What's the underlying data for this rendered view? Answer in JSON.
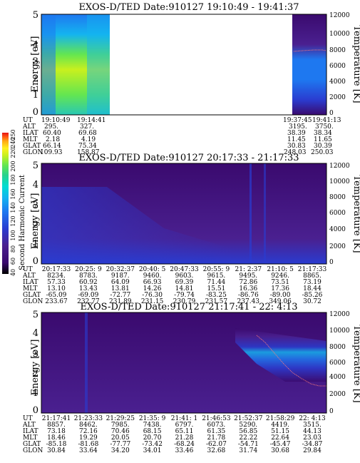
{
  "colors": {
    "background": "#ffffff",
    "ink": "#000000",
    "colormap": [
      "#000000",
      "#3a0a6e",
      "#4a2090",
      "#2a3cd0",
      "#1e78f0",
      "#14b4f0",
      "#00dcd2",
      "#28d28c",
      "#64e650",
      "#c8f01e",
      "#fff01e",
      "#ffaa14",
      "#ff5a14",
      "#e61414"
    ],
    "temperature_trace": "#ff7a7a"
  },
  "colorbar": {
    "label": "Second Harmonic Current",
    "ticks": [
      "40",
      "60",
      "80",
      "100",
      "120",
      "140",
      "160",
      "180",
      "200",
      "220",
      "240",
      "250"
    ],
    "range": [
      40,
      250
    ]
  },
  "panels": [
    {
      "title": "EXOS-D/TED   Date:910127   19:10:49 - 19:41:37",
      "row_headers": [
        "UT",
        "ALT",
        "ILAT",
        "MLT",
        "GLAT",
        "GLON"
      ],
      "columns": [
        {
          "values": [
            "19:10:49",
            "295.",
            "60.40",
            "2.18",
            "66.14",
            "109.93"
          ]
        },
        {
          "values": [
            "19:14:41",
            "327.",
            "69.68",
            "4.19",
            "75.34",
            "158.87"
          ]
        },
        {
          "values": [
            "19:37:45",
            "3195.",
            "38.39",
            "11.45",
            "30.83",
            "248.03"
          ]
        },
        {
          "values": [
            "19:41:13",
            "3750.",
            "38.34",
            "11.65",
            "30.39",
            "250.03"
          ]
        }
      ]
    },
    {
      "title": "EXOS-D/TED   Date:910127   20:17:33 - 21:17:33",
      "row_headers": [
        "UT",
        "ALT",
        "ILAT",
        "MLT",
        "GLAT",
        "GLON"
      ],
      "columns": [
        {
          "values": [
            "20:17:33",
            "8234.",
            "57.33",
            "13.10",
            "-65.09",
            "233.67"
          ]
        },
        {
          "values": [
            "20:25: 9",
            "8783.",
            "60.92",
            "13.43",
            "-69.09",
            "232.77"
          ]
        },
        {
          "values": [
            "20:32:37",
            "9187.",
            "64.09",
            "13.81",
            "-72.77",
            "231.89"
          ]
        },
        {
          "values": [
            "20:40: 5",
            "9460.",
            "66.93",
            "14.26",
            "-76.30",
            "231.15"
          ]
        },
        {
          "values": [
            "20:47:33",
            "9603.",
            "69.39",
            "14.81",
            "-79.74",
            "230.79"
          ]
        },
        {
          "values": [
            "20:55: 9",
            "9615.",
            "71.44",
            "15.51",
            "-83.25",
            "231.57"
          ]
        },
        {
          "values": [
            "21: 2:37",
            "9495.",
            "72.86",
            "16.36",
            "-86.76",
            "237.43"
          ]
        },
        {
          "values": [
            "21:10: 5",
            "9246.",
            "73.51",
            "17.36",
            "-89.00",
            "349.06"
          ]
        },
        {
          "values": [
            "21:17:33",
            "8865.",
            "73.19",
            "18.44",
            "-85.26",
            "30.72"
          ]
        }
      ]
    },
    {
      "title": "EXOS-D/TED   Date:910127   21:17:41 - 22: 4:13",
      "row_headers": [
        "UT",
        "ALT",
        "ILAT",
        "MLT",
        "GLAT",
        "GLON"
      ],
      "columns": [
        {
          "values": [
            "21:17:41",
            "8857.",
            "73.18",
            "18.46",
            "-85.18",
            "30.84"
          ]
        },
        {
          "values": [
            "21:23:33",
            "8462.",
            "72.16",
            "19.29",
            "-81.68",
            "33.64"
          ]
        },
        {
          "values": [
            "21:29:25",
            "7985.",
            "70.46",
            "20.05",
            "-77.77",
            "34.20"
          ]
        },
        {
          "values": [
            "21:35: 9",
            "7438.",
            "68.15",
            "20.70",
            "-73.42",
            "34.01"
          ]
        },
        {
          "values": [
            "21:41: 1",
            "6797.",
            "65.11",
            "21.28",
            "-68.24",
            "33.46"
          ]
        },
        {
          "values": [
            "21:46:53",
            "6073.",
            "61.35",
            "21.78",
            "-62.07",
            "32.68"
          ]
        },
        {
          "values": [
            "21:52:37",
            "5290.",
            "56.85",
            "22.22",
            "-54.71",
            "31.74"
          ]
        },
        {
          "values": [
            "21:58:29",
            "4419.",
            "51.15",
            "22.64",
            "-45.47",
            "30.68"
          ]
        },
        {
          "values": [
            "22: 4:13",
            "3515.",
            "44.13",
            "23.03",
            "-34.87",
            "29.84"
          ]
        }
      ]
    }
  ],
  "chart_data": [
    {
      "type": "heatmap",
      "title": "EXOS-D/TED   Date:910127   19:10:49 - 19:41:37",
      "ylabel": "Energy [eV]",
      "y2label": "Temperature [K]",
      "ylim": [
        0,
        5
      ],
      "y2lim": [
        0,
        12000
      ],
      "yticks": [
        "0",
        "1",
        "2",
        "3",
        "4",
        "5"
      ],
      "y2ticks": [
        "0",
        "2000",
        "4000",
        "6000",
        "8000",
        "10000",
        "12000"
      ],
      "data_gap": true,
      "dominant_level": "high (green-yellow) in first segment; medium blue in last segment",
      "temperature_trace_K": [
        7800,
        7900,
        8000,
        8000,
        7900
      ]
    },
    {
      "type": "heatmap",
      "title": "EXOS-D/TED   Date:910127   20:17:33 - 21:17:33",
      "ylabel": "Energy [eV]",
      "y2label": "Temperature [K]",
      "ylim": [
        0,
        5
      ],
      "y2lim": [
        0,
        12000
      ],
      "yticks": [
        "0",
        "1",
        "2",
        "3",
        "4",
        "5"
      ],
      "y2ticks": [
        "0",
        "2000",
        "4000",
        "6000",
        "8000",
        "10000",
        "12000"
      ],
      "data_gap": false,
      "dominant_level": "low (purple) with brighter band near start"
    },
    {
      "type": "heatmap",
      "title": "EXOS-D/TED   Date:910127   21:17:41 - 22: 4:13",
      "ylabel": "Energy [eV]",
      "y2label": "Temperature [K]",
      "ylim": [
        0,
        5
      ],
      "y2lim": [
        0,
        12000
      ],
      "yticks": [
        "0",
        "1",
        "2",
        "3",
        "4",
        "5"
      ],
      "y2ticks": [
        "0",
        "2000",
        "4000",
        "6000",
        "8000",
        "10000",
        "12000"
      ],
      "data_gap": false,
      "dominant_level": "low (purple) with blue enhancement near end",
      "temperature_trace_K": [
        7500,
        6800,
        5800,
        4800,
        4000,
        3600,
        3400
      ]
    }
  ]
}
